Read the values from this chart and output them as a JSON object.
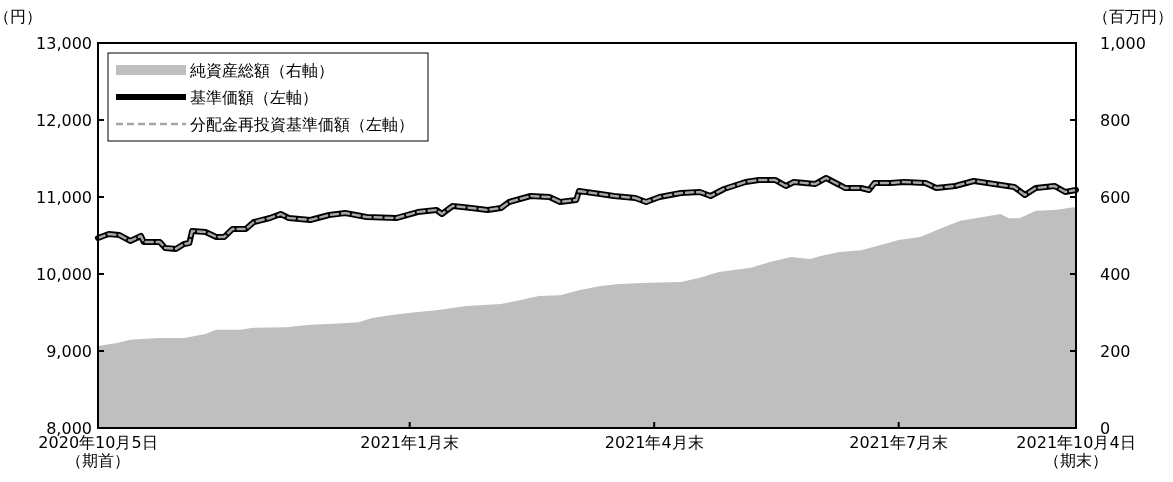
{
  "chart_data": {
    "type": "line",
    "ylabel": "（円）",
    "y2label": "（百万円）",
    "legend": "top left",
    "xlim": [
      "2020-10-05",
      "2021-10-04"
    ],
    "xticks": [
      {
        "value": "2020-10-05",
        "label": "2020年10月5日（期首）"
      },
      {
        "value": "2021-01-29",
        "label": "2021年1月末"
      },
      {
        "value": "2021-04-30",
        "label": "2021年4月末"
      },
      {
        "value": "2021-07-30",
        "label": "2021年7月末"
      },
      {
        "value": "2021-10-04",
        "label": "2021年10月4日（期末）"
      }
    ],
    "ylim": [
      8000,
      13000
    ],
    "yticks": [
      {
        "value": 8000,
        "label": "8,000"
      },
      {
        "value": 9000,
        "label": "9,000"
      },
      {
        "value": 10000,
        "label": "10,000"
      },
      {
        "value": 11000,
        "label": "11,000"
      },
      {
        "value": 12000,
        "label": "12,000"
      },
      {
        "value": 13000,
        "label": "13,000"
      }
    ],
    "y2lim": [
      0,
      1000
    ],
    "y2ticks": [
      0,
      200,
      400,
      600,
      800,
      {
        "value": 1000,
        "label": "1,000"
      }
    ],
    "series": [
      {
        "name": "純資産総額（右軸）",
        "type": "area",
        "axis": "y2",
        "color": "#bfbfbf",
        "x": [
          "2020-10-05",
          "2020-10-12",
          "2020-10-17",
          "2020-10-21",
          "2020-10-28",
          "2020-11-06",
          "2020-11-10",
          "2020-11-14",
          "2020-11-18",
          "2020-11-27",
          "2020-12-01",
          "2020-12-14",
          "2020-12-23",
          "2020-12-30",
          "2021-01-10",
          "2021-01-15",
          "2021-01-23",
          "2021-02-01",
          "2021-02-08",
          "2021-02-19",
          "2021-03-04",
          "2021-03-11",
          "2021-03-18",
          "2021-03-26",
          "2021-04-02",
          "2021-04-10",
          "2021-04-17",
          "2021-04-28",
          "2021-05-10",
          "2021-05-17",
          "2021-05-24",
          "2021-06-05",
          "2021-06-12",
          "2021-06-20",
          "2021-06-27",
          "2021-07-01",
          "2021-07-08",
          "2021-07-16",
          "2021-07-23",
          "2021-07-30",
          "2021-08-07",
          "2021-08-16",
          "2021-08-22",
          "2021-09-06",
          "2021-09-09",
          "2021-09-13",
          "2021-09-19",
          "2021-09-26",
          "2021-10-04"
        ],
        "values": [
          213,
          221,
          229,
          231,
          234,
          234,
          239,
          244,
          255,
          255,
          260,
          262,
          268,
          270,
          275,
          286,
          294,
          301,
          306,
          317,
          322,
          332,
          343,
          345,
          358,
          369,
          374,
          377,
          379,
          390,
          405,
          416,
          431,
          444,
          439,
          447,
          457,
          462,
          475,
          488,
          496,
          522,
          538,
          556,
          545,
          545,
          564,
          566,
          574
        ]
      },
      {
        "name": "基準価額（左軸）",
        "color": "#000000",
        "line_style": "solid",
        "x": [
          "2020-10-05",
          "2020-10-09",
          "2020-10-13",
          "2020-10-17",
          "2020-10-21",
          "2020-10-22",
          "2020-10-28",
          "2020-10-30",
          "2020-11-03",
          "2020-11-06",
          "2020-11-08",
          "2020-11-09",
          "2020-11-14",
          "2020-11-18",
          "2020-11-21",
          "2020-11-24",
          "2020-11-29",
          "2020-12-02",
          "2020-12-08",
          "2020-12-12",
          "2020-12-15",
          "2020-12-23",
          "2020-12-30",
          "2021-01-05",
          "2021-01-13",
          "2021-01-24",
          "2021-02-01",
          "2021-02-08",
          "2021-02-10",
          "2021-02-14",
          "2021-02-21",
          "2021-02-27",
          "2021-03-04",
          "2021-03-07",
          "2021-03-15",
          "2021-03-22",
          "2021-03-26",
          "2021-04-01",
          "2021-04-02",
          "2021-04-10",
          "2021-04-15",
          "2021-04-23",
          "2021-04-27",
          "2021-05-02",
          "2021-05-10",
          "2021-05-17",
          "2021-05-21",
          "2021-05-26",
          "2021-06-03",
          "2021-06-08",
          "2021-06-14",
          "2021-06-18",
          "2021-06-21",
          "2021-06-29",
          "2021-07-03",
          "2021-07-08",
          "2021-07-10",
          "2021-07-16",
          "2021-07-19",
          "2021-07-21",
          "2021-07-27",
          "2021-08-01",
          "2021-08-09",
          "2021-08-13",
          "2021-08-20",
          "2021-08-27",
          "2021-09-06",
          "2021-09-11",
          "2021-09-15",
          "2021-09-19",
          "2021-09-26",
          "2021-09-30",
          "2021-10-04"
        ],
        "values": [
          10468,
          10519,
          10506,
          10429,
          10494,
          10416,
          10416,
          10338,
          10325,
          10390,
          10403,
          10558,
          10545,
          10481,
          10481,
          10584,
          10584,
          10675,
          10727,
          10779,
          10727,
          10701,
          10766,
          10792,
          10740,
          10727,
          10805,
          10831,
          10779,
          10883,
          10857,
          10831,
          10857,
          10935,
          11013,
          11000,
          10935,
          10961,
          11078,
          11039,
          11013,
          10987,
          10935,
          11000,
          11052,
          11065,
          11013,
          11104,
          11195,
          11221,
          11221,
          11143,
          11195,
          11169,
          11247,
          11156,
          11117,
          11117,
          11091,
          11182,
          11182,
          11195,
          11182,
          11117,
          11143,
          11208,
          11156,
          11130,
          11026,
          11117,
          11143,
          11065,
          11091
        ]
      },
      {
        "name": "分配金再投資基準価額（左軸）",
        "color": "#a6a6a6",
        "line_style": "dashed",
        "x": [
          "2020-10-05",
          "2020-10-09",
          "2020-10-13",
          "2020-10-17",
          "2020-10-21",
          "2020-10-22",
          "2020-10-28",
          "2020-10-30",
          "2020-11-03",
          "2020-11-06",
          "2020-11-08",
          "2020-11-09",
          "2020-11-14",
          "2020-11-18",
          "2020-11-21",
          "2020-11-24",
          "2020-11-29",
          "2020-12-02",
          "2020-12-08",
          "2020-12-12",
          "2020-12-15",
          "2020-12-23",
          "2020-12-30",
          "2021-01-05",
          "2021-01-13",
          "2021-01-24",
          "2021-02-01",
          "2021-02-08",
          "2021-02-10",
          "2021-02-14",
          "2021-02-21",
          "2021-02-27",
          "2021-03-04",
          "2021-03-07",
          "2021-03-15",
          "2021-03-22",
          "2021-03-26",
          "2021-04-01",
          "2021-04-02",
          "2021-04-10",
          "2021-04-15",
          "2021-04-23",
          "2021-04-27",
          "2021-05-02",
          "2021-05-10",
          "2021-05-17",
          "2021-05-21",
          "2021-05-26",
          "2021-06-03",
          "2021-06-08",
          "2021-06-14",
          "2021-06-18",
          "2021-06-21",
          "2021-06-29",
          "2021-07-03",
          "2021-07-08",
          "2021-07-10",
          "2021-07-16",
          "2021-07-19",
          "2021-07-21",
          "2021-07-27",
          "2021-08-01",
          "2021-08-09",
          "2021-08-13",
          "2021-08-20",
          "2021-08-27",
          "2021-09-06",
          "2021-09-11",
          "2021-09-15",
          "2021-09-19",
          "2021-09-26",
          "2021-09-30",
          "2021-10-04"
        ],
        "values": [
          10468,
          10519,
          10506,
          10429,
          10494,
          10416,
          10416,
          10338,
          10325,
          10390,
          10403,
          10558,
          10545,
          10481,
          10481,
          10584,
          10584,
          10675,
          10727,
          10779,
          10727,
          10701,
          10766,
          10792,
          10740,
          10727,
          10805,
          10831,
          10779,
          10883,
          10857,
          10831,
          10857,
          10935,
          11013,
          11000,
          10935,
          10961,
          11078,
          11039,
          11013,
          10987,
          10935,
          11000,
          11052,
          11065,
          11013,
          11104,
          11195,
          11221,
          11221,
          11143,
          11195,
          11169,
          11247,
          11156,
          11117,
          11117,
          11091,
          11182,
          11182,
          11195,
          11182,
          11117,
          11143,
          11208,
          11156,
          11130,
          11026,
          11117,
          11143,
          11065,
          11091
        ]
      }
    ]
  }
}
